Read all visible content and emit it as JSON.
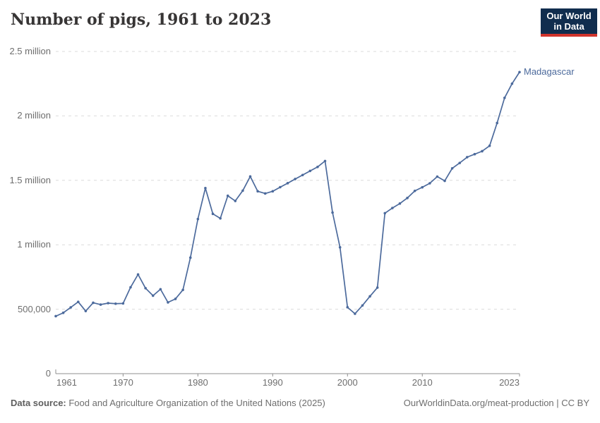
{
  "header": {
    "title": "Number of pigs, 1961 to 2023"
  },
  "logo": {
    "line1": "Our World",
    "line2": "in Data",
    "bg_color": "#102d4e",
    "bar_color": "#d0342c"
  },
  "footer": {
    "source_label": "Data source:",
    "source_text": " Food and Agriculture Organization of the United Nations (2025)",
    "link_text": "OurWorldinData.org/meat-production | CC BY"
  },
  "chart_data": {
    "type": "line",
    "title": "Number of pigs, 1961 to 2023",
    "entity_label": "Madagascar",
    "xlabel": "",
    "ylabel": "",
    "xlim": [
      1961,
      2023
    ],
    "ylim": [
      0,
      2500000
    ],
    "grid": "dashed-horizontal",
    "legend_position": "end-of-line-label",
    "line_color": "#4c6a9c",
    "yticks": [
      {
        "value": 0,
        "label": "0"
      },
      {
        "value": 500000,
        "label": "500,000"
      },
      {
        "value": 1000000,
        "label": "1 million"
      },
      {
        "value": 1500000,
        "label": "1.5 million"
      },
      {
        "value": 2000000,
        "label": "2 million"
      },
      {
        "value": 2500000,
        "label": "2.5 million"
      }
    ],
    "xticks": [
      {
        "value": 1961,
        "label": "1961"
      },
      {
        "value": 1970,
        "label": "1970"
      },
      {
        "value": 1980,
        "label": "1980"
      },
      {
        "value": 1990,
        "label": "1990"
      },
      {
        "value": 2000,
        "label": "2000"
      },
      {
        "value": 2010,
        "label": "2010"
      },
      {
        "value": 2023,
        "label": "2023"
      }
    ],
    "series": [
      {
        "name": "Madagascar",
        "color": "#4c6a9c",
        "x": [
          1961,
          1962,
          1963,
          1964,
          1965,
          1966,
          1967,
          1968,
          1969,
          1970,
          1971,
          1972,
          1973,
          1974,
          1975,
          1976,
          1977,
          1978,
          1979,
          1980,
          1981,
          1982,
          1983,
          1984,
          1985,
          1986,
          1987,
          1988,
          1989,
          1990,
          1991,
          1992,
          1993,
          1994,
          1995,
          1996,
          1997,
          1998,
          1999,
          2000,
          2001,
          2002,
          2003,
          2004,
          2005,
          2006,
          2007,
          2008,
          2009,
          2010,
          2011,
          2012,
          2013,
          2014,
          2015,
          2016,
          2017,
          2018,
          2019,
          2020,
          2021,
          2022,
          2023
        ],
        "values": [
          446000,
          472000,
          514000,
          557000,
          486000,
          550000,
          536000,
          547000,
          543000,
          545000,
          670000,
          770000,
          663000,
          605000,
          655000,
          553000,
          580000,
          650000,
          900000,
          1200000,
          1440000,
          1240000,
          1205000,
          1380000,
          1340000,
          1420000,
          1530000,
          1415000,
          1398000,
          1415000,
          1447000,
          1478000,
          1510000,
          1541000,
          1573000,
          1604000,
          1650000,
          1250000,
          980000,
          515000,
          465000,
          529000,
          600000,
          668000,
          1245000,
          1285000,
          1320000,
          1363000,
          1418000,
          1446000,
          1477000,
          1529000,
          1496000,
          1593000,
          1635000,
          1680000,
          1703000,
          1726000,
          1768000,
          1945000,
          2140000,
          2250000,
          2340000
        ]
      }
    ]
  }
}
